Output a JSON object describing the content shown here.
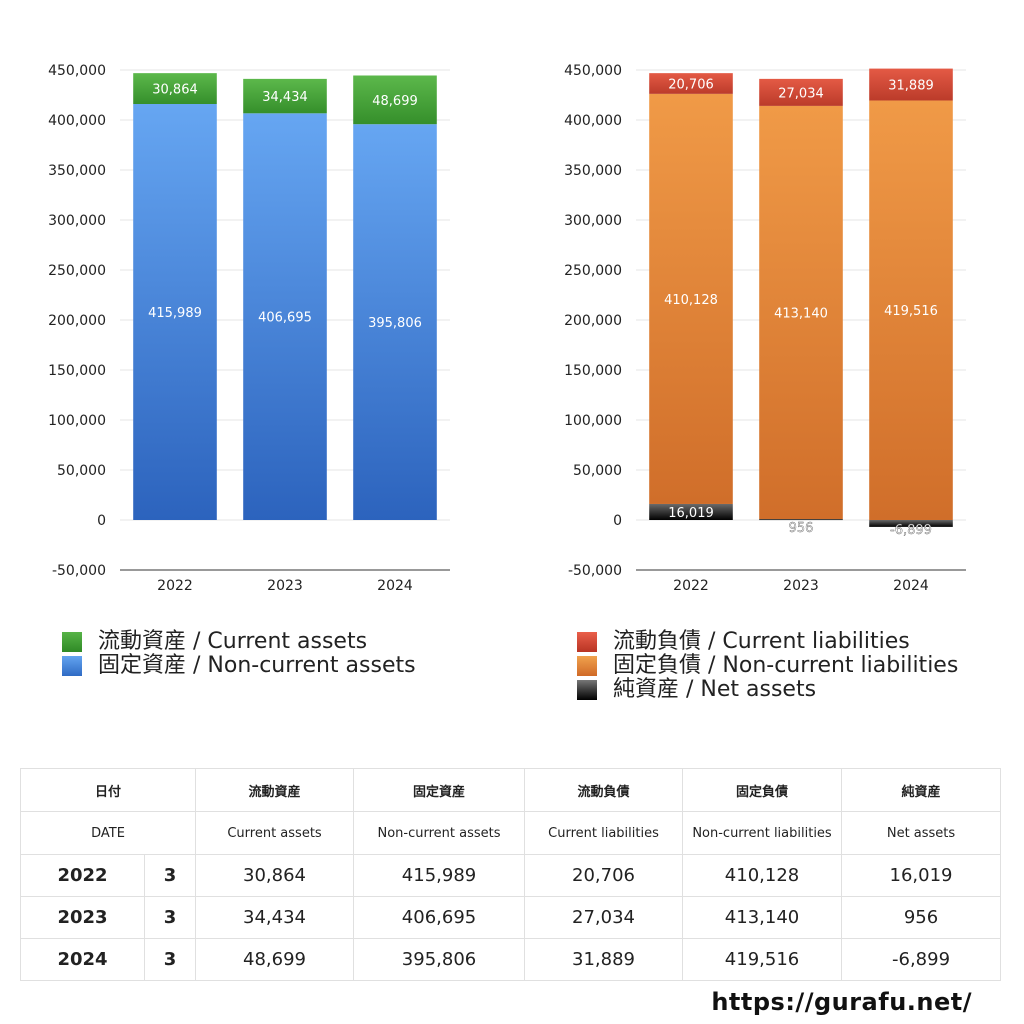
{
  "charts": [
    {
      "legend": [
        {
          "label": "流動資産 / Current assets",
          "color": "#4aa33a"
        },
        {
          "label": "固定資産 / Non-current assets",
          "color": "#4a8ae0"
        }
      ]
    },
    {
      "legend": [
        {
          "label": "流動負債 / Current liabilities",
          "color": "#d24a38"
        },
        {
          "label": "固定負債 / Non-current liabilities",
          "color": "#e08a3e"
        },
        {
          "label": "純資産 / Net assets",
          "color": "#222222"
        }
      ]
    }
  ],
  "chart_data": [
    {
      "type": "bar",
      "stacked": true,
      "categories": [
        "2022",
        "2023",
        "2024"
      ],
      "ylim": [
        -50000,
        450000
      ],
      "yticks": [
        "450,000",
        "400,000",
        "350,000",
        "300,000",
        "250,000",
        "200,000",
        "150,000",
        "100,000",
        "50,000",
        "0",
        "-50,000"
      ],
      "grid": true,
      "series": [
        {
          "name": "固定資産 / Non-current assets",
          "values": [
            415989,
            406695,
            395806
          ],
          "labels": [
            "415,989",
            "406,695",
            "395,806"
          ]
        },
        {
          "name": "流動資産 / Current assets",
          "values": [
            30864,
            34434,
            48699
          ],
          "labels": [
            "30,864",
            "34,434",
            "48,699"
          ]
        }
      ]
    },
    {
      "type": "bar",
      "stacked": true,
      "categories": [
        "2022",
        "2023",
        "2024"
      ],
      "ylim": [
        -50000,
        450000
      ],
      "yticks": [
        "450,000",
        "400,000",
        "350,000",
        "300,000",
        "250,000",
        "200,000",
        "150,000",
        "100,000",
        "50,000",
        "0",
        "-50,000"
      ],
      "grid": true,
      "series": [
        {
          "name": "純資産 / Net assets",
          "values": [
            16019,
            956,
            -6899
          ],
          "labels": [
            "16,019",
            "956",
            "-6,899"
          ]
        },
        {
          "name": "固定負債 / Non-current liabilities",
          "values": [
            410128,
            413140,
            419516
          ],
          "labels": [
            "410,128",
            "413,140",
            "419,516"
          ]
        },
        {
          "name": "流動負債 / Current liabilities",
          "values": [
            20706,
            27034,
            31889
          ],
          "labels": [
            "20,706",
            "27,034",
            "31,889"
          ]
        }
      ]
    }
  ],
  "table": {
    "header_jp": [
      "日付",
      "流動資産",
      "固定資産",
      "流動負債",
      "固定負債",
      "純資産"
    ],
    "header_en": [
      "DATE",
      "Current assets",
      "Non-current assets",
      "Current liabilities",
      "Non-current liabilities",
      "Net assets"
    ],
    "rows": [
      {
        "year": "2022",
        "month": "3",
        "ca": "30,864",
        "nca": "415,989",
        "cl": "20,706",
        "ncl": "410,128",
        "na": "16,019"
      },
      {
        "year": "2023",
        "month": "3",
        "ca": "34,434",
        "nca": "406,695",
        "cl": "27,034",
        "ncl": "413,140",
        "na": "956"
      },
      {
        "year": "2024",
        "month": "3",
        "ca": "48,699",
        "nca": "395,806",
        "cl": "31,889",
        "ncl": "419,516",
        "na": "-6,899"
      }
    ]
  },
  "site_url": "https://gurafu.net/"
}
